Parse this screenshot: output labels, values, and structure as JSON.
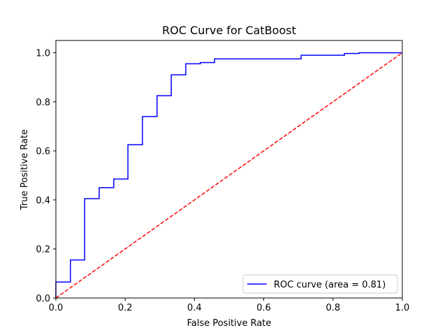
{
  "chart_data": {
    "type": "line",
    "title": "ROC Curve for CatBoost",
    "xlabel": "False Positive Rate",
    "ylabel": "True Positive Rate",
    "xlim": [
      0.0,
      1.0
    ],
    "ylim": [
      0.0,
      1.05
    ],
    "grid": false,
    "legend_position": "lower-right",
    "xticks": [
      0.0,
      0.2,
      0.4,
      0.6,
      0.8,
      1.0
    ],
    "xtick_labels": [
      "0.0",
      "0.2",
      "0.4",
      "0.6",
      "0.8",
      "1.0"
    ],
    "yticks": [
      0.0,
      0.2,
      0.4,
      0.6,
      0.8,
      1.0
    ],
    "ytick_labels": [
      "0.0",
      "0.2",
      "0.4",
      "0.6",
      "0.8",
      "1.0"
    ],
    "series": [
      {
        "name": "ROC curve (area = 0.81)",
        "color": "#0000ff",
        "style": "step",
        "x": [
          0.0,
          0.0,
          0.042,
          0.042,
          0.083,
          0.083,
          0.125,
          0.125,
          0.167,
          0.167,
          0.208,
          0.208,
          0.25,
          0.25,
          0.292,
          0.292,
          0.333,
          0.333,
          0.375,
          0.375,
          0.417,
          0.417,
          0.458,
          0.458,
          0.708,
          0.708,
          0.833,
          0.833,
          0.875,
          0.875,
          1.0
        ],
        "y": [
          0.0,
          0.065,
          0.065,
          0.155,
          0.155,
          0.405,
          0.405,
          0.45,
          0.45,
          0.485,
          0.485,
          0.625,
          0.625,
          0.74,
          0.74,
          0.825,
          0.825,
          0.91,
          0.91,
          0.955,
          0.955,
          0.96,
          0.96,
          0.975,
          0.975,
          0.99,
          0.99,
          0.997,
          0.997,
          1.0,
          1.0
        ]
      },
      {
        "color": "#ff0000",
        "style": "dashed",
        "x": [
          0.0,
          1.0
        ],
        "y": [
          0.0,
          1.0
        ]
      }
    ]
  }
}
